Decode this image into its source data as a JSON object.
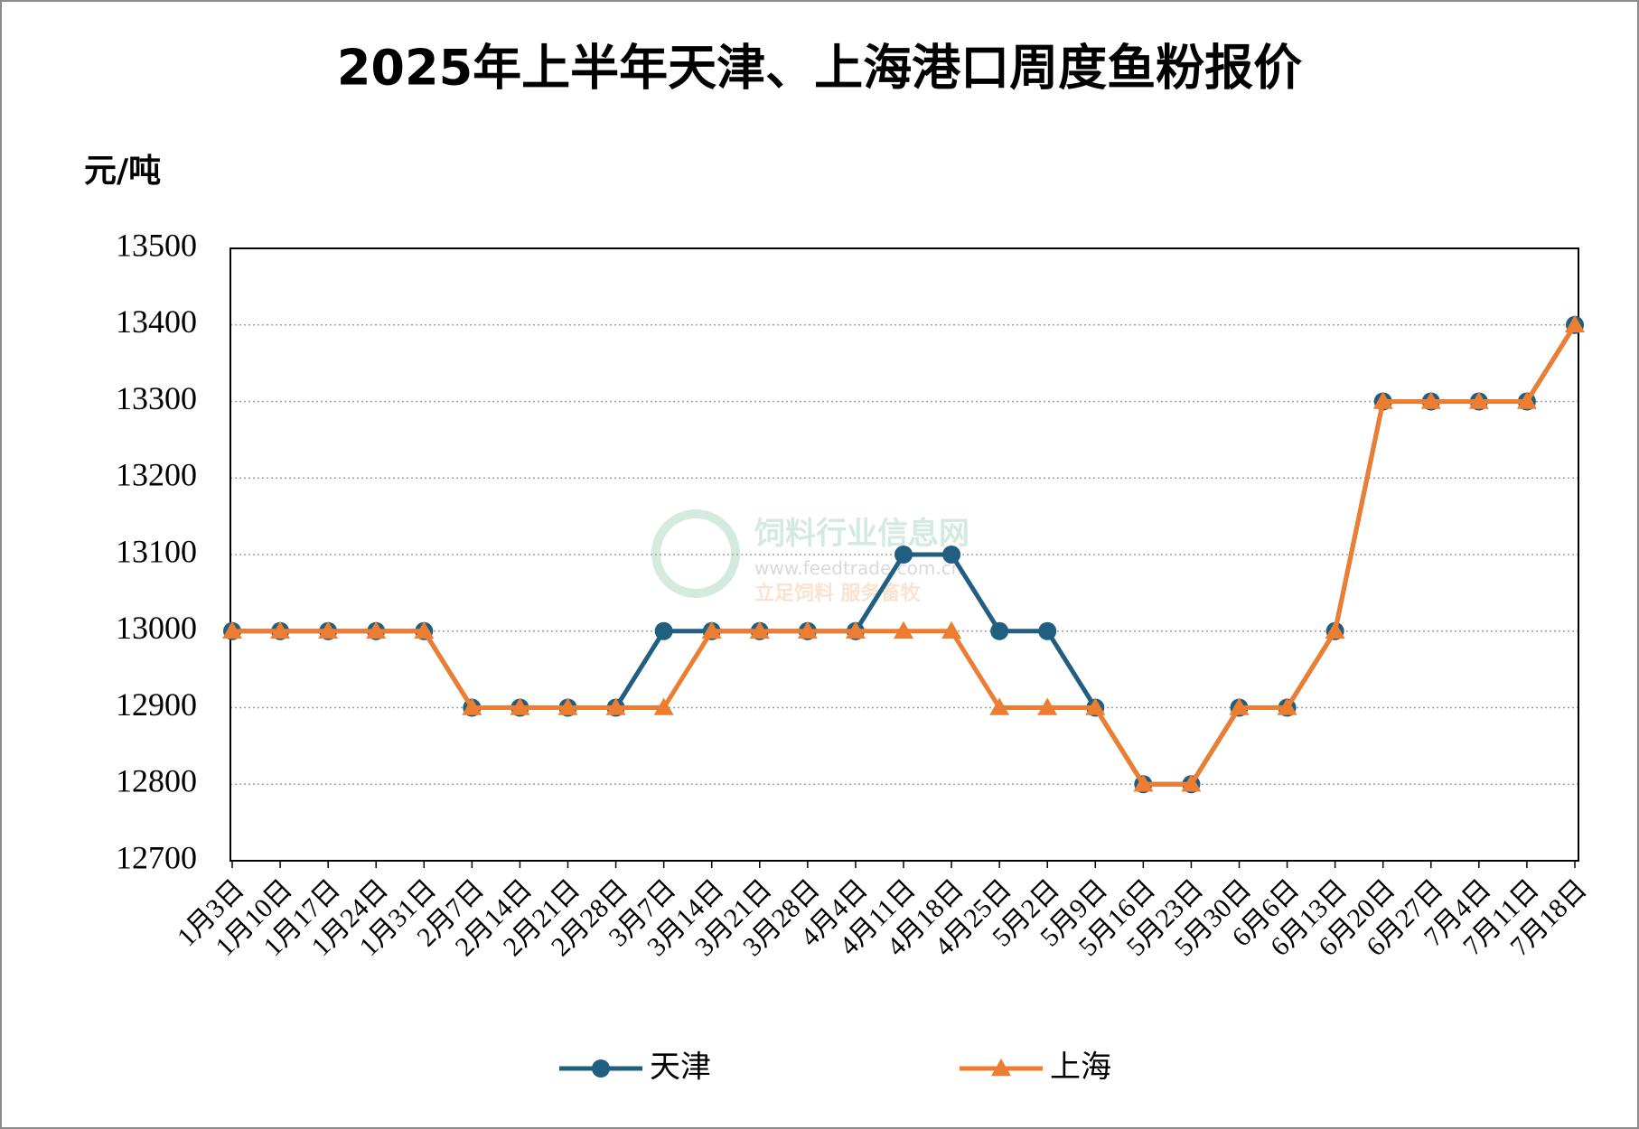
{
  "chart_data": {
    "type": "line",
    "title": "2025年上半年天津、上海港口周度鱼粉报价",
    "y_label": "元/吨",
    "categories": [
      "1月3日",
      "1月10日",
      "1月17日",
      "1月24日",
      "1月31日",
      "2月7日",
      "2月14日",
      "2月21日",
      "2月28日",
      "3月7日",
      "3月14日",
      "3月21日",
      "3月28日",
      "4月4日",
      "4月11日",
      "4月18日",
      "4月25日",
      "5月2日",
      "5月9日",
      "5月16日",
      "5月23日",
      "5月30日",
      "6月6日",
      "6月13日",
      "6月20日",
      "6月27日",
      "7月4日",
      "7月11日",
      "7月18日"
    ],
    "series": [
      {
        "name": "天津",
        "color": "#215f80",
        "marker": "circle",
        "values": [
          13000,
          13000,
          13000,
          13000,
          13000,
          12900,
          12900,
          12900,
          12900,
          13000,
          13000,
          13000,
          13000,
          13000,
          13100,
          13100,
          13000,
          13000,
          12900,
          12800,
          12800,
          12900,
          12900,
          13000,
          13300,
          13300,
          13300,
          13300,
          13400
        ]
      },
      {
        "name": "上海",
        "color": "#ed7d31",
        "marker": "triangle",
        "values": [
          13000,
          13000,
          13000,
          13000,
          13000,
          12900,
          12900,
          12900,
          12900,
          12900,
          13000,
          13000,
          13000,
          13000,
          13000,
          13000,
          12900,
          12900,
          12900,
          12800,
          12800,
          12900,
          12900,
          13000,
          13300,
          13300,
          13300,
          13300,
          13400
        ]
      }
    ],
    "ylim": [
      12700,
      13500
    ],
    "yticks": [
      12700,
      12800,
      12900,
      13000,
      13100,
      13200,
      13300,
      13400,
      13500
    ],
    "grid": true,
    "legend": "bottom"
  },
  "watermark": {
    "name": "饲料行业信息网",
    "url": "www.feedtrade.com.cn",
    "slogan": "立足饲料 服务畜牧"
  }
}
